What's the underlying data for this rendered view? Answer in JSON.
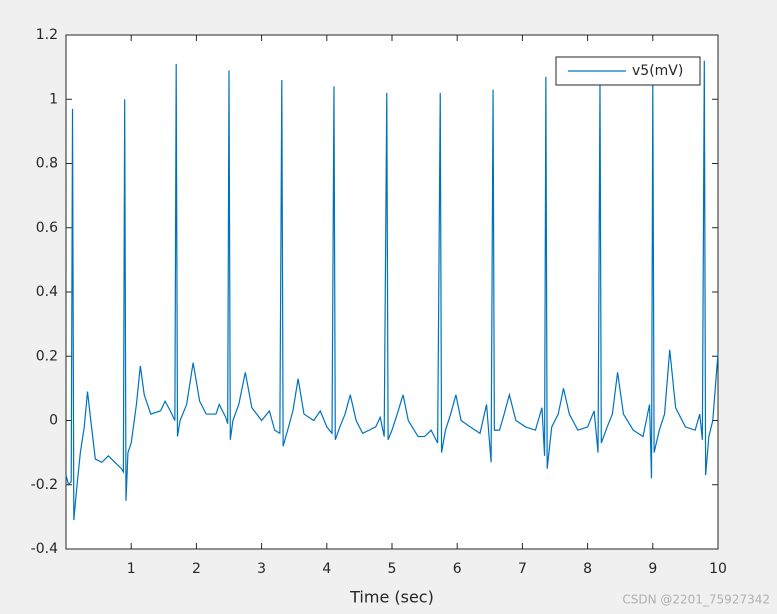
{
  "chart_data": {
    "type": "line",
    "x_label": "Time (sec)",
    "watermark": "CSDN @2201_75927342",
    "x": [
      0.0,
      0.04,
      0.08,
      0.1,
      0.12,
      0.16,
      0.22,
      0.28,
      0.33,
      0.38,
      0.45,
      0.55,
      0.65,
      0.75,
      0.85,
      0.88,
      0.9,
      0.92,
      0.95,
      1.0,
      1.08,
      1.14,
      1.2,
      1.3,
      1.45,
      1.52,
      1.6,
      1.67,
      1.69,
      1.71,
      1.75,
      1.85,
      1.95,
      2.05,
      2.15,
      2.3,
      2.35,
      2.45,
      2.48,
      2.5,
      2.52,
      2.56,
      2.65,
      2.75,
      2.85,
      3.0,
      3.12,
      3.2,
      3.28,
      3.31,
      3.33,
      3.4,
      3.48,
      3.56,
      3.65,
      3.8,
      3.9,
      4.0,
      4.08,
      4.11,
      4.13,
      4.2,
      4.28,
      4.36,
      4.45,
      4.55,
      4.65,
      4.75,
      4.82,
      4.88,
      4.92,
      4.94,
      5.0,
      5.08,
      5.17,
      5.25,
      5.4,
      5.5,
      5.6,
      5.7,
      5.74,
      5.76,
      5.82,
      5.9,
      5.98,
      6.06,
      6.2,
      6.35,
      6.45,
      6.52,
      6.55,
      6.57,
      6.65,
      6.72,
      6.8,
      6.9,
      7.05,
      7.2,
      7.3,
      7.34,
      7.36,
      7.38,
      7.45,
      7.55,
      7.63,
      7.72,
      7.85,
      8.0,
      8.1,
      8.16,
      8.19,
      8.21,
      8.3,
      8.38,
      8.46,
      8.55,
      8.7,
      8.85,
      8.95,
      8.98,
      9.0,
      9.02,
      9.1,
      9.18,
      9.26,
      9.35,
      9.5,
      9.65,
      9.72,
      9.76,
      9.79,
      9.81,
      9.86,
      9.92,
      10.0
    ],
    "series": [
      {
        "name": "v5(mV)",
        "color": "#0072bd",
        "values": [
          -0.17,
          -0.2,
          -0.19,
          0.97,
          -0.31,
          -0.22,
          -0.1,
          -0.02,
          0.09,
          0.0,
          -0.12,
          -0.13,
          -0.11,
          -0.13,
          -0.15,
          -0.16,
          1.0,
          -0.25,
          -0.1,
          -0.07,
          0.05,
          0.17,
          0.08,
          0.02,
          0.03,
          0.06,
          0.03,
          0.0,
          1.11,
          -0.05,
          0.0,
          0.05,
          0.18,
          0.06,
          0.02,
          0.02,
          0.05,
          0.01,
          -0.01,
          1.09,
          -0.06,
          0.0,
          0.05,
          0.15,
          0.04,
          0.0,
          0.03,
          -0.03,
          -0.04,
          1.06,
          -0.08,
          -0.03,
          0.03,
          0.13,
          0.02,
          0.0,
          0.03,
          -0.02,
          -0.04,
          1.04,
          -0.06,
          -0.02,
          0.02,
          0.08,
          0.0,
          -0.04,
          -0.03,
          -0.02,
          0.01,
          -0.05,
          1.02,
          -0.06,
          -0.03,
          0.02,
          0.08,
          0.0,
          -0.05,
          -0.05,
          -0.03,
          -0.07,
          1.02,
          -0.1,
          -0.03,
          0.02,
          0.08,
          0.0,
          -0.02,
          -0.04,
          0.05,
          -0.13,
          1.03,
          -0.03,
          -0.03,
          0.02,
          0.08,
          0.0,
          -0.02,
          -0.03,
          0.04,
          -0.11,
          1.07,
          -0.15,
          -0.02,
          0.02,
          0.1,
          0.02,
          -0.03,
          -0.02,
          0.03,
          -0.1,
          1.05,
          -0.07,
          -0.02,
          0.02,
          0.15,
          0.02,
          -0.03,
          -0.05,
          0.05,
          -0.18,
          1.05,
          -0.1,
          -0.03,
          0.02,
          0.22,
          0.04,
          -0.02,
          -0.03,
          0.02,
          -0.06,
          1.12,
          -0.17,
          -0.05,
          0.0,
          0.21
        ]
      }
    ],
    "xlim": [
      0,
      10
    ],
    "ylim": [
      -0.4,
      1.2
    ],
    "xticks": [
      1,
      2,
      3,
      4,
      5,
      6,
      7,
      8,
      9,
      10
    ],
    "yticks": [
      -0.4,
      -0.2,
      0,
      0.2,
      0.4,
      0.6,
      0.8,
      1,
      1.2
    ],
    "legend": "top-right"
  }
}
